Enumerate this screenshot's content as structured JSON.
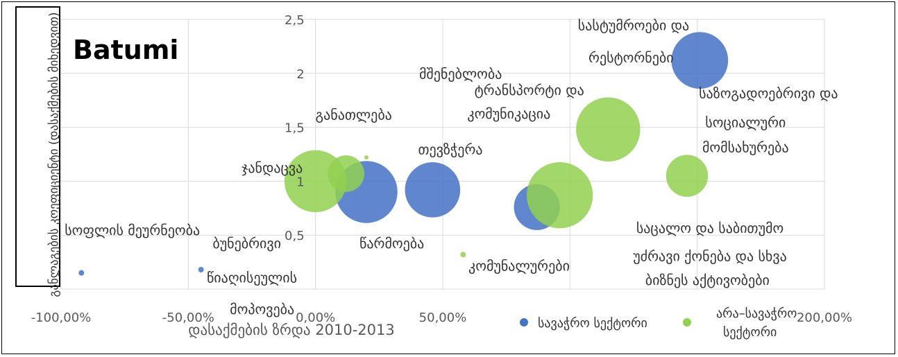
{
  "chart_data": {
    "type": "bubble",
    "title": "Batumi",
    "xlabel": "დასაქმების ზრდა 2010-2013",
    "ylabel": "განლაგების კოეფიციენტი (დასაქმების მიხედვით)",
    "xlim": [
      -100,
      200
    ],
    "ylim": [
      0,
      2.5
    ],
    "x_ticks": [
      "-100,00%",
      "-50,00%",
      "0,00%",
      "50,00%",
      "100,00%",
      "150,00%",
      "200,00%"
    ],
    "y_ticks": [
      "0,5",
      "1",
      "1,5",
      "2",
      "2,5"
    ],
    "legend_position": "bottom-right",
    "series": [
      {
        "name": "სავაჭრო სექტორი",
        "color": "#4472C4",
        "points": [
          {
            "x": -92,
            "y": 0.15,
            "size": 0.4
          },
          {
            "x": -45,
            "y": 0.18,
            "size": 0.4
          },
          {
            "x": 20,
            "y": 0.9,
            "size": 6
          },
          {
            "x": 46,
            "y": 0.92,
            "size": 4.5
          },
          {
            "x": 87,
            "y": 0.76,
            "size": 2.8
          },
          {
            "x": 151,
            "y": 2.12,
            "size": 4.8
          }
        ]
      },
      {
        "name": "არა–სავაჭრო სექტორი",
        "color": "#92D050",
        "points": [
          {
            "x": 0,
            "y": 1.0,
            "size": 6
          },
          {
            "x": 12,
            "y": 1.07,
            "size": 1.5
          },
          {
            "x": 20,
            "y": 1.22,
            "size": 0.15
          },
          {
            "x": 58,
            "y": 0.32,
            "size": 0.5
          },
          {
            "x": 96,
            "y": 0.87,
            "size": 7
          },
          {
            "x": 115,
            "y": 1.48,
            "size": 6.5
          },
          {
            "x": 146,
            "y": 1.05,
            "size": 2.2
          }
        ]
      }
    ],
    "annotations": [
      "სასტუმროები და",
      "რესტორნები",
      "მშენებლობა",
      "ტრანსპორტი და",
      "კომუნიკაცია",
      "საზოგადოებრივი და",
      "სოციალური",
      "მომსახურება",
      "განათლება",
      "თევზჭერა",
      "ჯანდაცვა",
      "სოფლის მეურნეობა",
      "ბუნებრივი",
      "წიაღისეულის",
      "მოპოვება",
      "წარმოება",
      "კომუნალურები",
      "საცალო და საბითუმო",
      "უძრავი ქონება და სხვა",
      "ბიზნეს აქტივობები"
    ]
  }
}
